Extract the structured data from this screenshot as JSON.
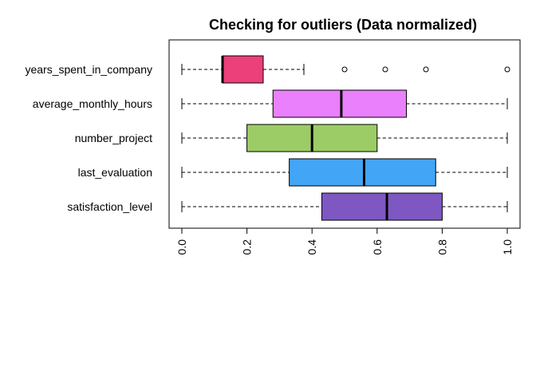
{
  "chart_data": {
    "type": "boxplot",
    "orientation": "horizontal",
    "title": "Checking for outliers (Data normalized)",
    "xlabel": "",
    "ylabel": "",
    "xlim": [
      0,
      1
    ],
    "ticks": [
      {
        "value": 0.0,
        "label": "0.0"
      },
      {
        "value": 0.2,
        "label": "0.2"
      },
      {
        "value": 0.4,
        "label": "0.4"
      },
      {
        "value": 0.6,
        "label": "0.6"
      },
      {
        "value": 0.8,
        "label": "0.8"
      },
      {
        "value": 1.0,
        "label": "1.0"
      }
    ],
    "tick_label_rotation": "vertical",
    "grid": false,
    "legend": "none",
    "series": [
      {
        "label": "satisfaction_level",
        "color": "#7E57C2",
        "min": 0.0,
        "q1": 0.43,
        "median": 0.63,
        "q3": 0.8,
        "max": 1.0,
        "outliers": []
      },
      {
        "label": "last_evaluation",
        "color": "#42A5F5",
        "min": 0.0,
        "q1": 0.33,
        "median": 0.56,
        "q3": 0.78,
        "max": 1.0,
        "outliers": []
      },
      {
        "label": "number_project",
        "color": "#9CCC65",
        "min": 0.0,
        "q1": 0.2,
        "median": 0.4,
        "q3": 0.6,
        "max": 1.0,
        "outliers": []
      },
      {
        "label": "average_monthly_hours",
        "color": "#EA80FC",
        "min": 0.0,
        "q1": 0.28,
        "median": 0.49,
        "q3": 0.69,
        "max": 1.0,
        "outliers": []
      },
      {
        "label": "years_spent_in_company",
        "color": "#EC407A",
        "min": 0.0,
        "q1": 0.125,
        "median": 0.125,
        "q3": 0.25,
        "max": 0.375,
        "outliers": [
          0.5,
          0.625,
          0.75,
          1.0
        ]
      }
    ]
  }
}
